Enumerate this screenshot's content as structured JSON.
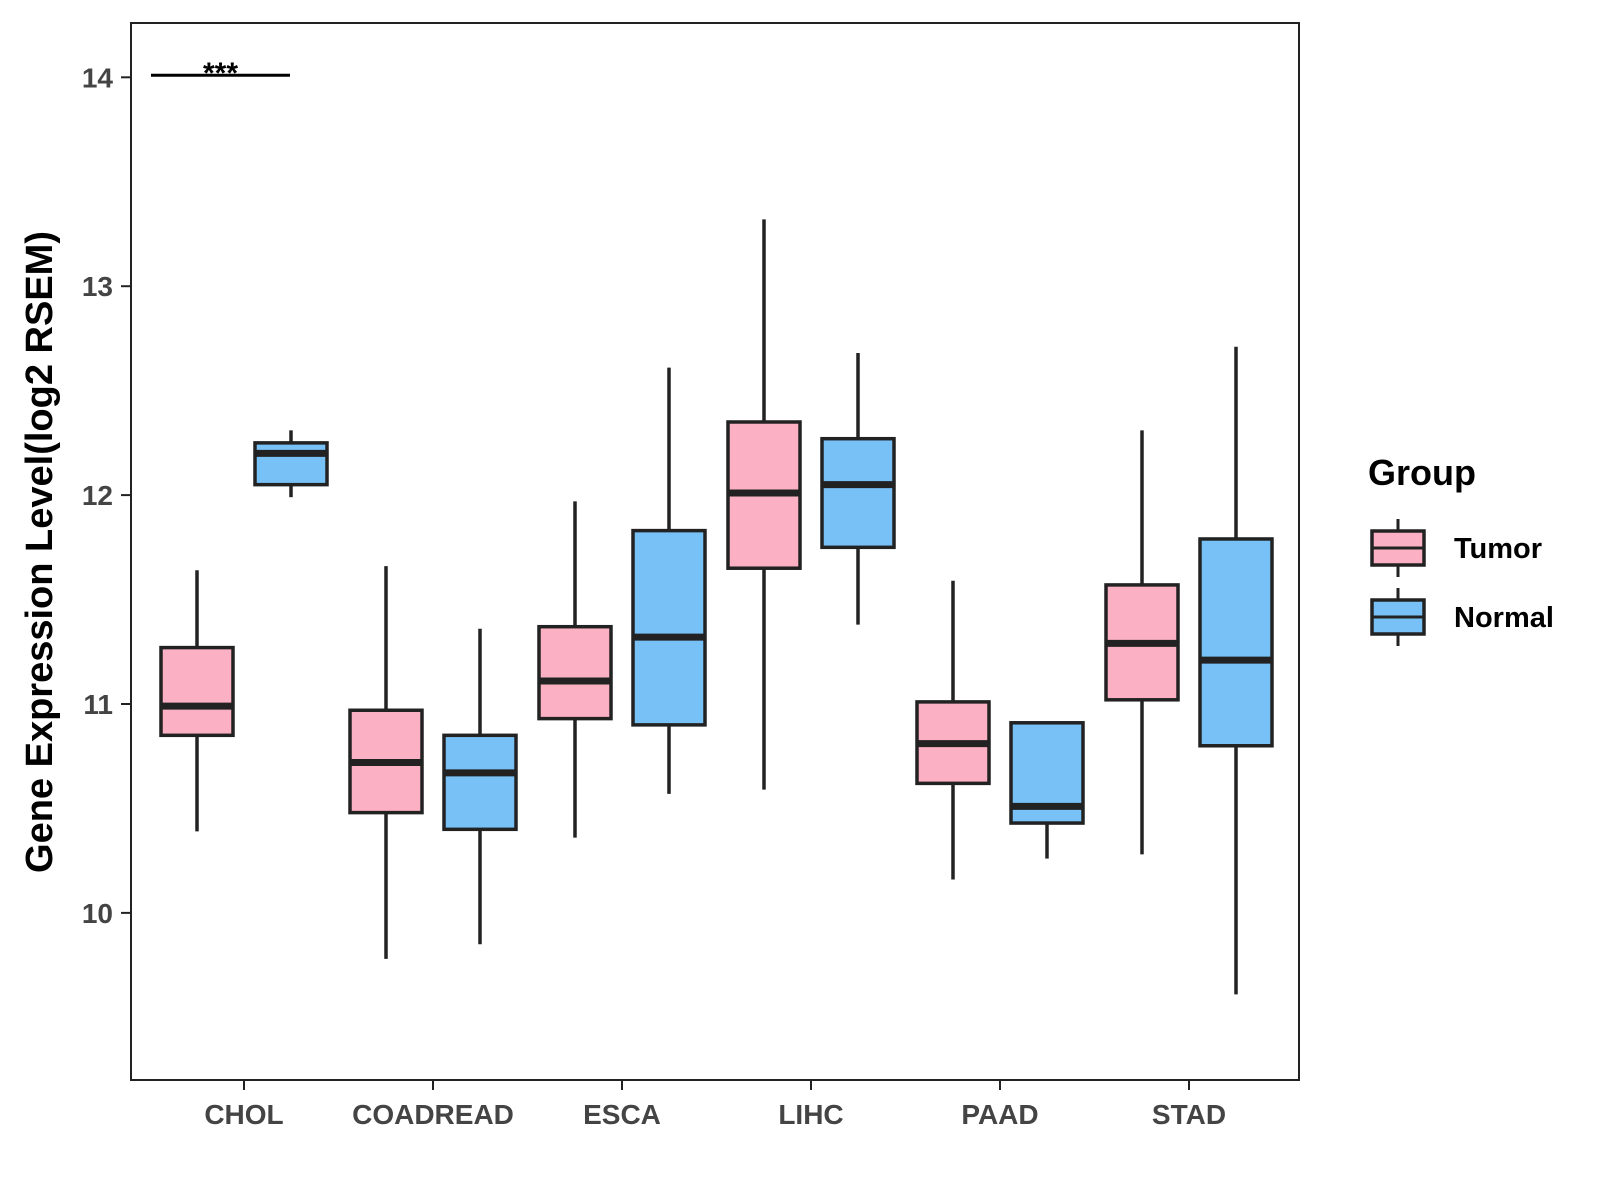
{
  "chart_data": {
    "type": "boxplot",
    "title": "",
    "xlabel": "",
    "ylabel": "Gene Expression Level(log2 RSEM)",
    "ylim": [
      9.2,
      14.26
    ],
    "yticks": [
      10,
      11,
      12,
      13,
      14
    ],
    "grid": false,
    "categories": [
      "CHOL",
      "COADREAD",
      "ESCA",
      "LIHC",
      "PAAD",
      "STAD"
    ],
    "legend": {
      "title": "Group",
      "placement": "right",
      "entries": [
        {
          "name": "Tumor",
          "color": "#FBB1C3"
        },
        {
          "name": "Normal",
          "color": "#78C1F7"
        }
      ]
    },
    "series": [
      {
        "name": "Tumor",
        "color": "#FBB1C3",
        "boxes": [
          {
            "whisker_low": 10.39,
            "q1": 10.85,
            "median": 10.99,
            "q3": 11.27,
            "whisker_high": 11.64
          },
          {
            "whisker_low": 9.78,
            "q1": 10.48,
            "median": 10.72,
            "q3": 10.97,
            "whisker_high": 11.66
          },
          {
            "whisker_low": 10.36,
            "q1": 10.93,
            "median": 11.11,
            "q3": 11.37,
            "whisker_high": 11.97
          },
          {
            "whisker_low": 10.59,
            "q1": 11.65,
            "median": 12.01,
            "q3": 12.35,
            "whisker_high": 13.32
          },
          {
            "whisker_low": 10.16,
            "q1": 10.62,
            "median": 10.81,
            "q3": 11.01,
            "whisker_high": 11.59
          },
          {
            "whisker_low": 10.28,
            "q1": 11.02,
            "median": 11.29,
            "q3": 11.57,
            "whisker_high": 12.31
          }
        ]
      },
      {
        "name": "Normal",
        "color": "#78C1F7",
        "boxes": [
          {
            "whisker_low": 11.99,
            "q1": 12.05,
            "median": 12.2,
            "q3": 12.25,
            "whisker_high": 12.31
          },
          {
            "whisker_low": 9.85,
            "q1": 10.4,
            "median": 10.67,
            "q3": 10.85,
            "whisker_high": 11.36
          },
          {
            "whisker_low": 10.57,
            "q1": 10.9,
            "median": 11.32,
            "q3": 11.83,
            "whisker_high": 12.61
          },
          {
            "whisker_low": 11.38,
            "q1": 11.75,
            "median": 12.05,
            "q3": 12.27,
            "whisker_high": 12.68
          },
          {
            "whisker_low": 10.26,
            "q1": 10.43,
            "median": 10.51,
            "q3": 10.91,
            "whisker_high": 10.91
          },
          {
            "whisker_low": 9.61,
            "q1": 10.8,
            "median": 11.21,
            "q3": 11.79,
            "whisker_high": 12.71
          }
        ]
      }
    ],
    "annotations": [
      {
        "category": "CHOL",
        "text": "***",
        "y": 14.01
      }
    ]
  }
}
